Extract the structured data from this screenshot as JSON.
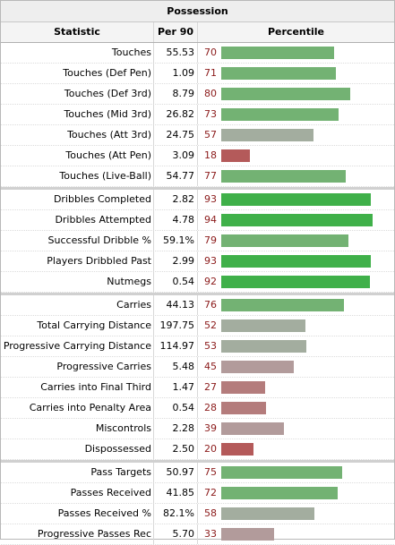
{
  "title": "Possession",
  "headers": {
    "statistic": "Statistic",
    "per90": "Per 90",
    "percentile": "Percentile"
  },
  "colors": {
    "high": "#3fb049",
    "good": "#73b273",
    "mid": "#a3ad9f",
    "lowmid": "#b29b9b",
    "low": "#b45a5a"
  },
  "bar_max_fraction": 1.0,
  "groups": [
    {
      "rows": [
        {
          "stat": "Touches",
          "per90": "55.53",
          "pct": "70",
          "tier": "good"
        },
        {
          "stat": "Touches (Def Pen)",
          "per90": "1.09",
          "pct": "71",
          "tier": "good"
        },
        {
          "stat": "Touches (Def 3rd)",
          "per90": "8.79",
          "pct": "80",
          "tier": "good"
        },
        {
          "stat": "Touches (Mid 3rd)",
          "per90": "26.82",
          "pct": "73",
          "tier": "good"
        },
        {
          "stat": "Touches (Att 3rd)",
          "per90": "24.75",
          "pct": "57",
          "tier": "mid"
        },
        {
          "stat": "Touches (Att Pen)",
          "per90": "3.09",
          "pct": "18",
          "tier": "low"
        },
        {
          "stat": "Touches (Live-Ball)",
          "per90": "54.77",
          "pct": "77",
          "tier": "good"
        }
      ]
    },
    {
      "rows": [
        {
          "stat": "Dribbles Completed",
          "per90": "2.82",
          "pct": "93",
          "tier": "high"
        },
        {
          "stat": "Dribbles Attempted",
          "per90": "4.78",
          "pct": "94",
          "tier": "high"
        },
        {
          "stat": "Successful Dribble %",
          "per90": "59.1%",
          "pct": "79",
          "tier": "good"
        },
        {
          "stat": "Players Dribbled Past",
          "per90": "2.99",
          "pct": "93",
          "tier": "high"
        },
        {
          "stat": "Nutmegs",
          "per90": "0.54",
          "pct": "92",
          "tier": "high"
        }
      ]
    },
    {
      "rows": [
        {
          "stat": "Carries",
          "per90": "44.13",
          "pct": "76",
          "tier": "good"
        },
        {
          "stat": "Total Carrying Distance",
          "per90": "197.75",
          "pct": "52",
          "tier": "mid"
        },
        {
          "stat": "Progressive Carrying Distance",
          "per90": "114.97",
          "pct": "53",
          "tier": "mid"
        },
        {
          "stat": "Progressive Carries",
          "per90": "5.48",
          "pct": "45",
          "tier": "lowmid"
        },
        {
          "stat": "Carries into Final Third",
          "per90": "1.47",
          "pct": "27",
          "tier": "low2"
        },
        {
          "stat": "Carries into Penalty Area",
          "per90": "0.54",
          "pct": "28",
          "tier": "low2"
        },
        {
          "stat": "Miscontrols",
          "per90": "2.28",
          "pct": "39",
          "tier": "lowmid"
        },
        {
          "stat": "Dispossessed",
          "per90": "2.50",
          "pct": "20",
          "tier": "low"
        }
      ]
    },
    {
      "rows": [
        {
          "stat": "Pass Targets",
          "per90": "50.97",
          "pct": "75",
          "tier": "good"
        },
        {
          "stat": "Passes Received",
          "per90": "41.85",
          "pct": "72",
          "tier": "good"
        },
        {
          "stat": "Passes Received %",
          "per90": "82.1%",
          "pct": "58",
          "tier": "mid"
        },
        {
          "stat": "Progressive Passes Rec",
          "per90": "5.70",
          "pct": "33",
          "tier": "lowmid"
        }
      ]
    }
  ]
}
